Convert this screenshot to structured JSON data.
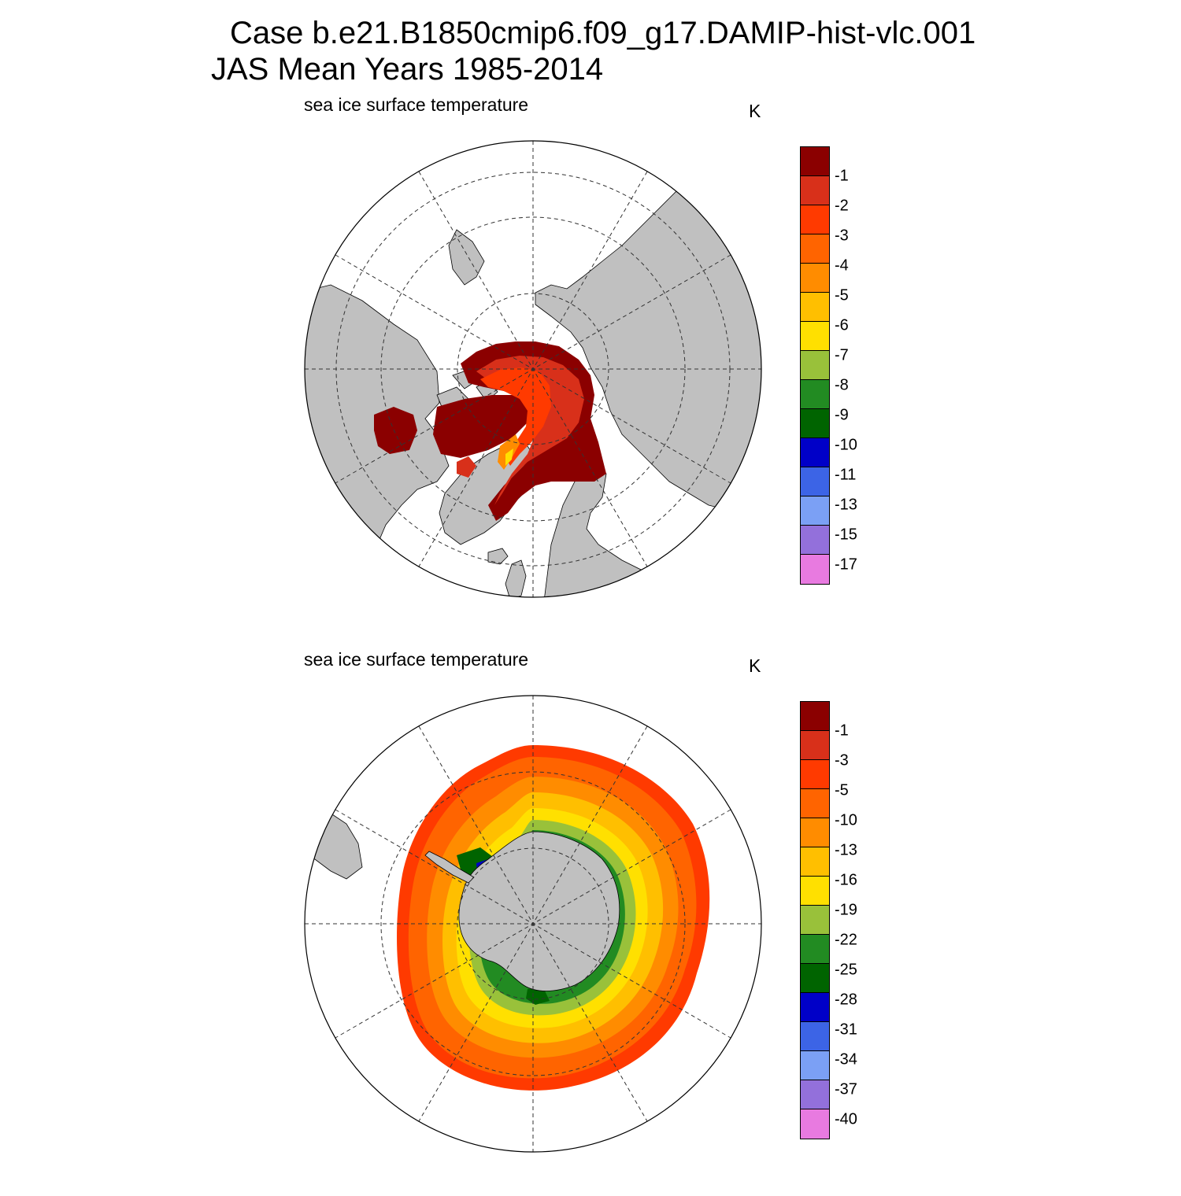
{
  "title_line1": "Case b.e21.B1850cmip6.f09_g17.DAMIP-hist-vlc.001",
  "title_line2": "JAS Mean   Years 1985-2014",
  "panels": [
    {
      "hemisphere": "north",
      "subtitle": "sea ice surface temperature",
      "units": "K",
      "colorbar_labels": [
        "-1",
        "-2",
        "-3",
        "-4",
        "-5",
        "-6",
        "-7",
        "-8",
        "-9",
        "-10",
        "-11",
        "-13",
        "-15",
        "-17"
      ]
    },
    {
      "hemisphere": "south",
      "subtitle": "sea ice surface temperature",
      "units": "K",
      "colorbar_labels": [
        "-1",
        "-3",
        "-5",
        "-10",
        "-13",
        "-16",
        "-19",
        "-22",
        "-25",
        "-28",
        "-31",
        "-34",
        "-37",
        "-40"
      ]
    }
  ],
  "colorbar_colors": [
    "#8b0000",
    "#d8301a",
    "#ff3a00",
    "#ff6400",
    "#ff8c00",
    "#ffbf00",
    "#ffe000",
    "#99c13a",
    "#228b22",
    "#006400",
    "#0000c8",
    "#3c64e6",
    "#7ba0f5",
    "#9370db",
    "#e87ae0"
  ],
  "colors": {
    "land": "#c0c0c0",
    "ocean": "#ffffff",
    "grid": "#000000"
  }
}
